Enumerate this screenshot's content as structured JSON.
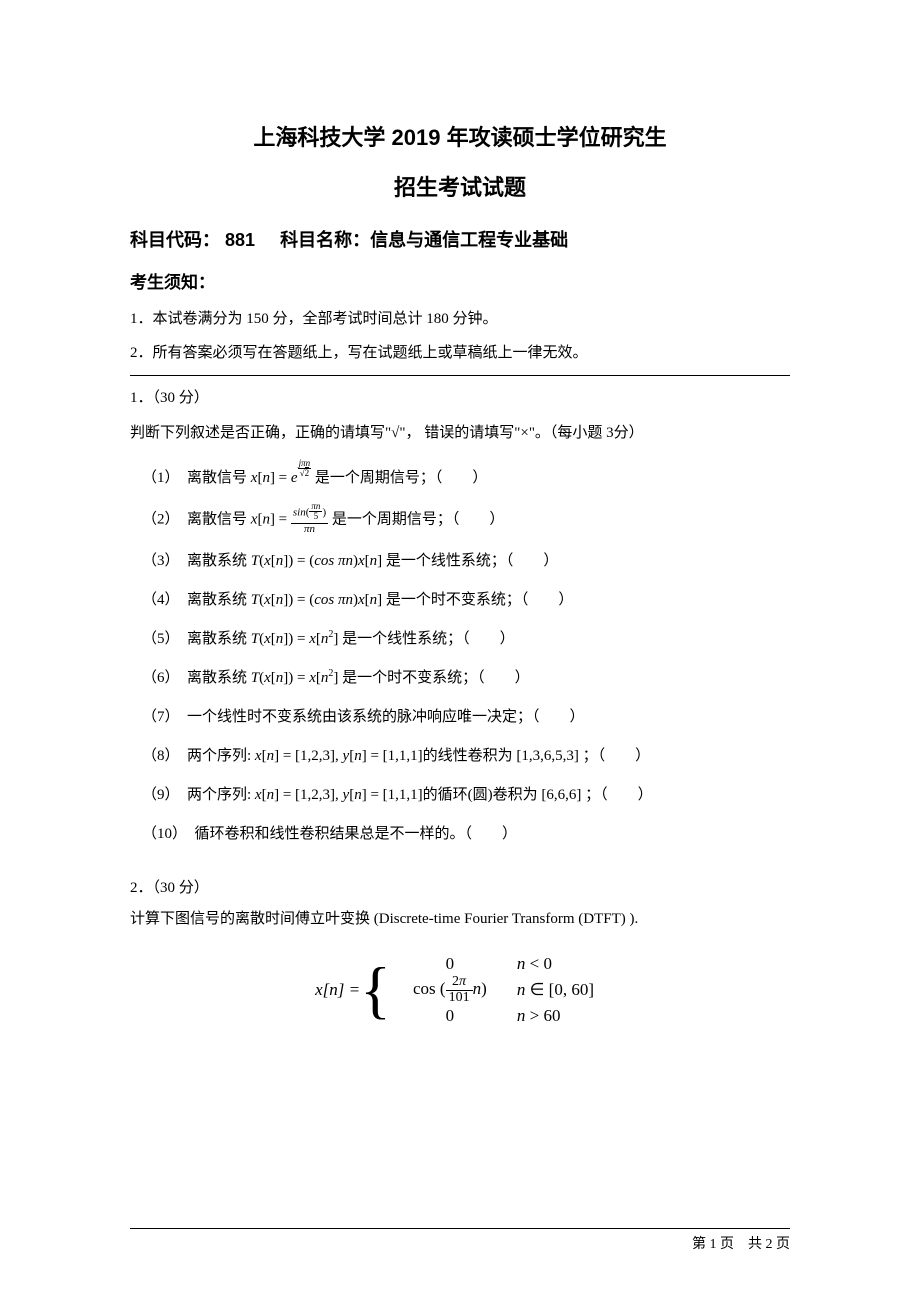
{
  "title_main": "上海科技大学 2019 年攻读硕士学位研究生",
  "title_sub": "招生考试试题",
  "subject_code_label": "科目代码：",
  "subject_code": "881",
  "subject_name_label": "科目名称：",
  "subject_name": "信息与通信工程专业基础",
  "notice_label": "考生须知：",
  "notice1": "1．本试卷满分为 150 分，全部考试时间总计 180 分钟。",
  "notice2": "2．所有答案必须写在答题纸上，写在试题纸上或草稿纸上一律无效。",
  "q1": {
    "header": "1．（30 分）",
    "intro": "判断下列叙述是否正确，正确的请填写\"√\"， 错误的请填写\"×\"。（每小题 3分）",
    "items": [
      {
        "num": "（1）",
        "prefix": "离散信号 ",
        "math_html": "<span class='math-ital'>x</span>[<span class='math-ital'>n</span>] = <span class='math-ital'>e</span><span class='frac-exp'><span class='num'><span class='math-ital'>jπn</span></span><span class='den'><span class='math-up'>√</span><span style='border-top:0.8px solid #000;'>2</span></span></span>",
        "suffix": " 是一个周期信号；（　　）"
      },
      {
        "num": "（2）",
        "prefix": "离散信号 ",
        "math_html": "<span class='math-ital'>x</span>[<span class='math-ital'>n</span>] = <span class='frac'><span class='num'><span class='math-ital'>sin</span>(<span class='frac' style='font-size:9px;'><span class='num' style='border-bottom:0.8px solid #000;'><span class='math-ital'>πn</span></span><span class='den'>5</span></span>)</span><span class='den'><span class='math-ital'>πn</span></span></span>",
        "suffix": "  是一个周期信号；（　　）"
      },
      {
        "num": "（3）",
        "prefix": "离散系统 ",
        "math_html": "<span class='math-ital'>T</span>(<span class='math-ital'>x</span>[<span class='math-ital'>n</span>]) = (<span class='math-ital'>cos πn</span>)<span class='math-ital'>x</span>[<span class='math-ital'>n</span>]",
        "suffix": "  是一个线性系统；（　　）"
      },
      {
        "num": "（4）",
        "prefix": "离散系统 ",
        "math_html": "<span class='math-ital'>T</span>(<span class='math-ital'>x</span>[<span class='math-ital'>n</span>]) = (<span class='math-ital'>cos πn</span>)<span class='math-ital'>x</span>[<span class='math-ital'>n</span>]",
        "suffix": "  是一个时不变系统；（　　）"
      },
      {
        "num": "（5）",
        "prefix": "离散系统 ",
        "math_html": "<span class='math-ital'>T</span>(<span class='math-ital'>x</span>[<span class='math-ital'>n</span>]) = <span class='math-ital'>x</span>[<span class='math-ital'>n</span><span class='exp'>2</span>]",
        "suffix": "  是一个线性系统；（　　）"
      },
      {
        "num": "（6）",
        "prefix": "离散系统 ",
        "math_html": "<span class='math-ital'>T</span>(<span class='math-ital'>x</span>[<span class='math-ital'>n</span>]) = <span class='math-ital'>x</span>[<span class='math-ital'>n</span><span class='exp'>2</span>]",
        "suffix": "  是一个时不变系统；（　　）"
      },
      {
        "num": "（7）",
        "prefix": "一个线性时不变系统由该系统的脉冲响应唯一决定；（　　）",
        "math_html": "",
        "suffix": ""
      },
      {
        "num": "（8）",
        "prefix": "两个序列: ",
        "math_html": "<span class='math-ital'>x</span>[<span class='math-ital'>n</span>] = [1,2,3], <span class='math-ital'>y</span>[<span class='math-ital'>n</span>] = [1,1,1]",
        "suffix": "的线性卷积为  [1,3,6,5,3] ；（　　）"
      },
      {
        "num": "（9）",
        "prefix": "两个序列: ",
        "math_html": "<span class='math-ital'>x</span>[<span class='math-ital'>n</span>] = [1,2,3], <span class='math-ital'>y</span>[<span class='math-ital'>n</span>] = [1,1,1]",
        "suffix": "的循环(圆)卷积为  [6,6,6] ；（　　）"
      },
      {
        "num": "（10）",
        "prefix": "循环卷积和线性卷积结果总是不一样的。（　　）",
        "math_html": "",
        "suffix": ""
      }
    ]
  },
  "q2": {
    "header": "2．（30 分）",
    "intro": "计算下图信号的离散时间傅立叶变换 (Discrete-time Fourier Transform (DTFT) ).",
    "lhs": "x[n] =",
    "rows": [
      {
        "left_html": "0",
        "right_html": "<span class='math-ital'>n</span> &lt; 0"
      },
      {
        "left_html": "cos (<span class='frac-big'><span class='num'>2<span class='math-ital'>π</span></span><span class='den'>101</span></span><span class='math-ital'>n</span>)",
        "right_html": "<span class='math-ital'>n</span> ∈ [0, 60]"
      },
      {
        "left_html": "0",
        "right_html": "<span class='math-ital'>n</span> &gt; 60"
      }
    ]
  },
  "footer": {
    "page_text": "第 1 页　共 2 页"
  }
}
